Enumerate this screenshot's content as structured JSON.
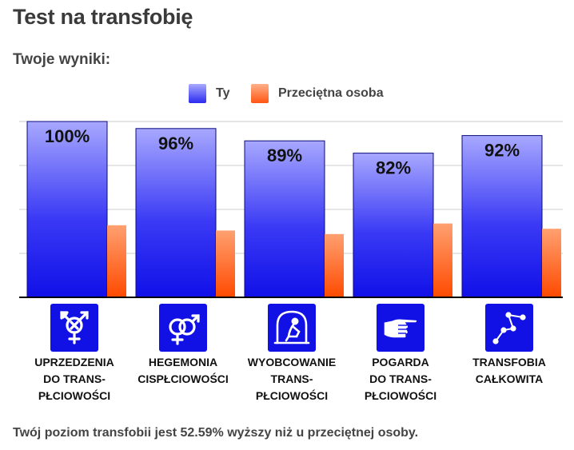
{
  "page": {
    "title": "Test na transfobię",
    "results_heading": "Twoje wyniki:",
    "summary": "Twój poziom transfobii jest 52.59% wyższy niż u przeciętnej osoby."
  },
  "colors": {
    "you": "#2222ee",
    "average": "#ff5511"
  },
  "chart_data": {
    "type": "bar",
    "categories": [
      "UPRZEDZENIA\nDO TRANS-\nPŁCIOWOŚCI",
      "HEGEMONIA\nCISPŁCIOWOŚCI",
      "WYOBCOWANIE\nTRANS-\nPŁCIOWOŚCI",
      "POGARDA\nDO TRANS-\nPŁCIOWOŚCI",
      "TRANSFOBIA\nCAŁKOWITA"
    ],
    "icons": [
      "transgender-symbol-icon",
      "interlocked-gender-symbols-icon",
      "isolated-person-icon",
      "pointing-hand-icon",
      "constellation-icon"
    ],
    "series": [
      {
        "name": "Ty",
        "values": [
          100,
          96,
          89,
          82,
          92
        ],
        "labels": [
          "100%",
          "96%",
          "89%",
          "82%",
          "92%"
        ]
      },
      {
        "name": "Przeciętna osoba",
        "values": [
          41,
          38,
          36,
          42,
          39
        ]
      }
    ],
    "ylim": [
      0,
      100
    ],
    "grid": true,
    "legend_position": "top-center"
  }
}
